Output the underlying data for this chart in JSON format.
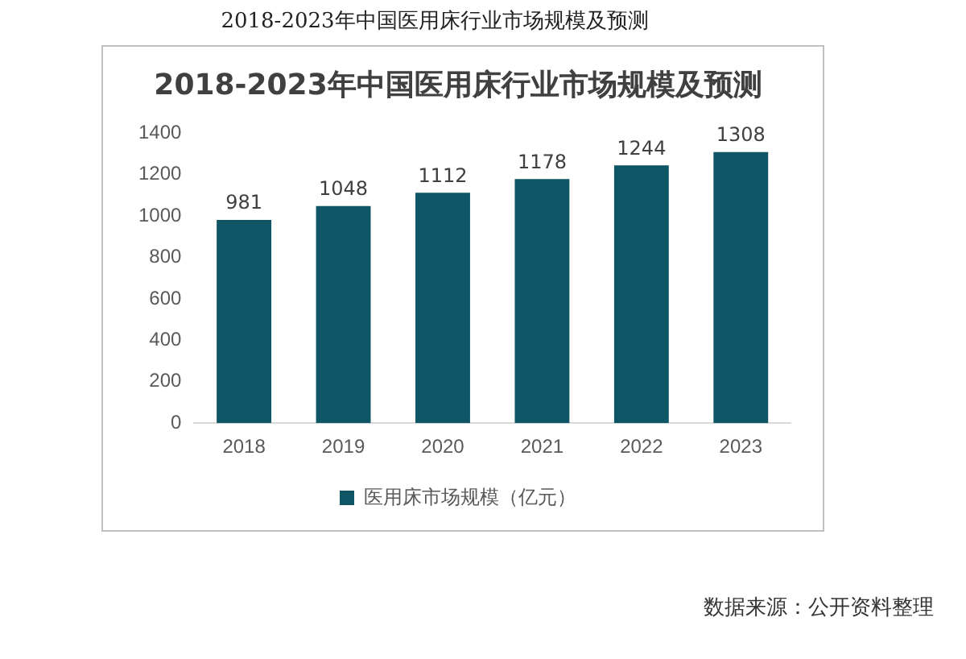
{
  "chart_data": {
    "type": "bar",
    "title": "2018-2023年中国医用床行业市场规模及预测",
    "subtitle": "2018-2023年中国医用床行业市场规模及预测",
    "categories": [
      "2018",
      "2019",
      "2020",
      "2021",
      "2022",
      "2023"
    ],
    "series": [
      {
        "name": "医用床市场规模（亿元）",
        "color": "#0e5566",
        "values": [
          981,
          1048,
          1112,
          1178,
          1244,
          1308
        ]
      }
    ],
    "ylim": [
      0,
      1400
    ],
    "yticks": [
      0,
      200,
      400,
      600,
      800,
      1000,
      1200,
      1400
    ],
    "grid": false,
    "legend": "bottom",
    "data_labels": true,
    "annotations": [
      "数据来源：公开资料整理"
    ]
  }
}
